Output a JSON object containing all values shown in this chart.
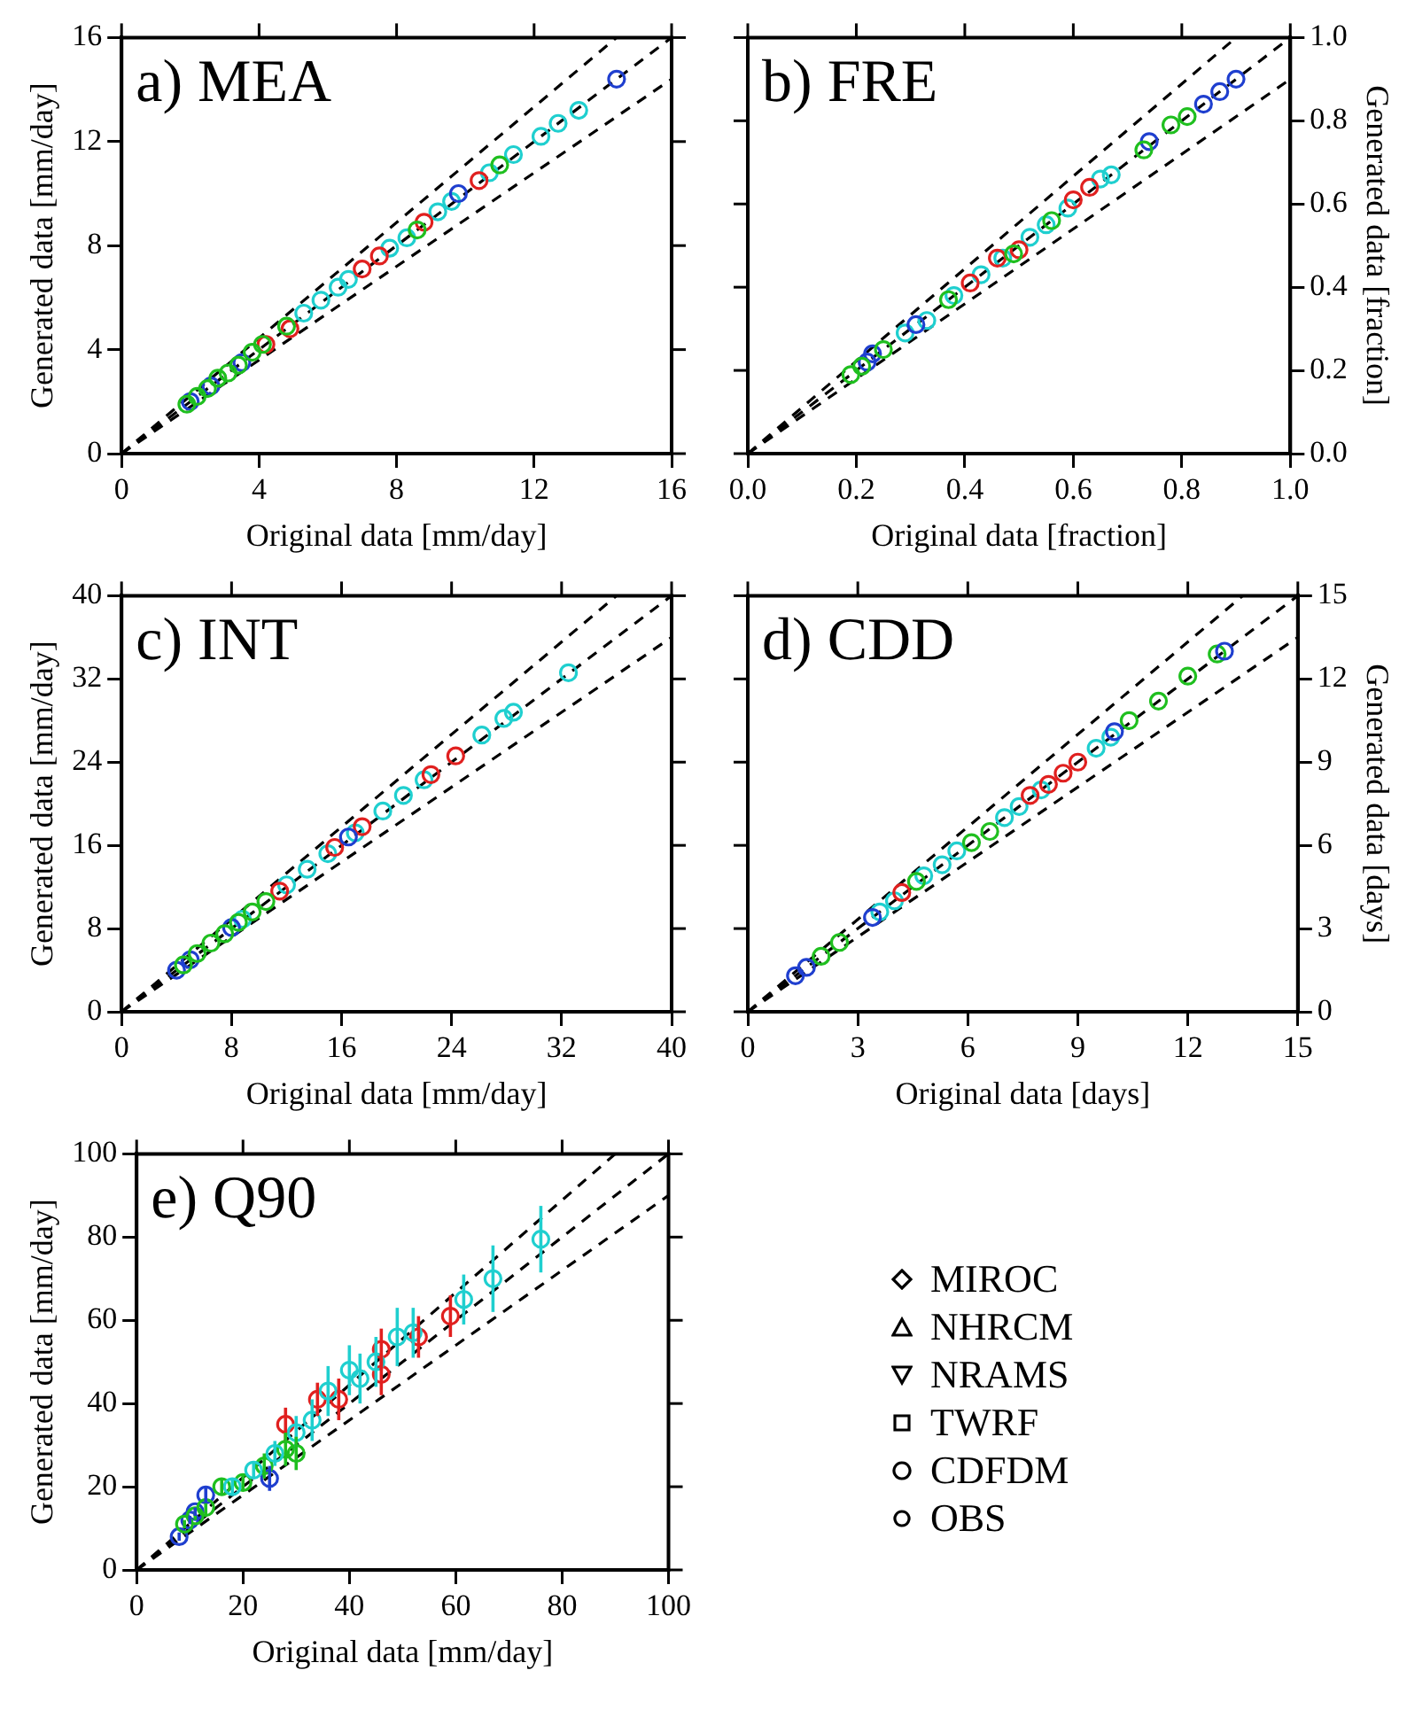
{
  "chart_data": [
    {
      "type": "scatter",
      "title": "a) MEA",
      "xlabel": "Original data [mm/day]",
      "ylabel": "Generated data [mm/day]",
      "xlim": [
        0,
        16
      ],
      "ylim": [
        0,
        16
      ],
      "xticks": [
        0,
        4,
        8,
        12,
        16
      ],
      "yticks": [
        0,
        4,
        8,
        12,
        16
      ],
      "marker": "circle",
      "series": [
        {
          "type": "line",
          "marker": "none",
          "color": "#000000",
          "line_style": "dashed",
          "x": [
            0,
            14.4
          ],
          "values": [
            0,
            16
          ]
        },
        {
          "type": "line",
          "marker": "none",
          "color": "#000000",
          "line_style": "dashed",
          "x": [
            0,
            16
          ],
          "values": [
            0,
            16
          ]
        },
        {
          "type": "line",
          "marker": "none",
          "color": "#000000",
          "line_style": "dashed",
          "x": [
            0,
            16
          ],
          "values": [
            0,
            14.4
          ]
        },
        {
          "color": "#1fbf1f",
          "x": [
            1.9,
            2.2,
            2.5,
            2.8,
            3.1,
            3.4,
            3.8,
            4.1,
            4.8,
            8.6,
            11.0
          ],
          "values": [
            1.9,
            2.2,
            2.5,
            2.9,
            3.1,
            3.4,
            3.9,
            4.2,
            4.9,
            8.6,
            11.1
          ]
        },
        {
          "color": "#1f3fcf",
          "x": [
            2.0,
            2.6,
            3.5,
            9.8,
            14.4
          ],
          "values": [
            2.0,
            2.6,
            3.5,
            10.0,
            14.4
          ]
        },
        {
          "color": "#e0201f",
          "x": [
            4.2,
            4.9,
            7.0,
            7.5,
            8.8,
            10.4
          ],
          "values": [
            4.2,
            4.8,
            7.1,
            7.6,
            8.9,
            10.5
          ]
        },
        {
          "color": "#1fcfcf",
          "x": [
            5.3,
            5.8,
            6.3,
            6.6,
            7.8,
            8.3,
            9.2,
            9.6,
            10.7,
            11.4,
            12.2,
            12.7,
            13.3
          ],
          "values": [
            5.4,
            5.9,
            6.4,
            6.7,
            7.9,
            8.3,
            9.3,
            9.7,
            10.8,
            11.5,
            12.2,
            12.7,
            13.2
          ]
        }
      ]
    },
    {
      "type": "scatter",
      "title": "b) FRE",
      "xlabel": "Original data [fraction]",
      "y2label": "Generated data [fraction]",
      "xlim": [
        0,
        1
      ],
      "y2lim": [
        0,
        1
      ],
      "xticks": [
        {
          "value": 0,
          "label": "0.0"
        },
        0.2,
        0.4,
        0.6,
        0.8,
        {
          "value": 1,
          "label": "1.0"
        }
      ],
      "y2ticks": [
        {
          "value": 0,
          "label": "0.0"
        },
        0.2,
        0.4,
        0.6,
        0.8,
        {
          "value": 1,
          "label": "1.0"
        }
      ],
      "marker": "circle",
      "series": [
        {
          "type": "line",
          "marker": "none",
          "axis": "y2",
          "color": "#000000",
          "line_style": "dashed",
          "x": [
            0,
            0.9
          ],
          "values": [
            0,
            1
          ]
        },
        {
          "type": "line",
          "marker": "none",
          "axis": "y2",
          "color": "#000000",
          "line_style": "dashed",
          "x": [
            0,
            1
          ],
          "values": [
            0,
            1
          ]
        },
        {
          "type": "line",
          "marker": "none",
          "axis": "y2",
          "color": "#000000",
          "line_style": "dashed",
          "x": [
            0,
            1
          ],
          "values": [
            0,
            0.9
          ]
        },
        {
          "axis": "y2",
          "color": "#1fbf1f",
          "x": [
            0.19,
            0.21,
            0.25,
            0.37,
            0.49,
            0.56,
            0.73,
            0.78,
            0.81
          ],
          "values": [
            0.19,
            0.21,
            0.25,
            0.37,
            0.48,
            0.56,
            0.73,
            0.79,
            0.81
          ]
        },
        {
          "axis": "y2",
          "color": "#1f3fcf",
          "x": [
            0.22,
            0.23,
            0.31,
            0.74,
            0.84,
            0.87,
            0.9
          ],
          "values": [
            0.22,
            0.24,
            0.31,
            0.75,
            0.84,
            0.87,
            0.9
          ]
        },
        {
          "axis": "y2",
          "color": "#e0201f",
          "x": [
            0.41,
            0.46,
            0.5,
            0.6,
            0.63
          ],
          "values": [
            0.41,
            0.47,
            0.49,
            0.61,
            0.64
          ]
        },
        {
          "axis": "y2",
          "color": "#1fcfcf",
          "x": [
            0.29,
            0.33,
            0.38,
            0.43,
            0.47,
            0.52,
            0.55,
            0.59,
            0.65,
            0.67
          ],
          "values": [
            0.29,
            0.32,
            0.38,
            0.43,
            0.47,
            0.52,
            0.55,
            0.59,
            0.66,
            0.67
          ]
        }
      ]
    },
    {
      "type": "scatter",
      "title": "c) INT",
      "xlabel": "Original data [mm/day]",
      "ylabel": "Generated data [mm/day]",
      "xlim": [
        0,
        40
      ],
      "ylim": [
        0,
        40
      ],
      "xticks": [
        0,
        8,
        16,
        24,
        32,
        40
      ],
      "yticks": [
        0,
        8,
        16,
        24,
        32,
        40
      ],
      "marker": "circle",
      "series": [
        {
          "type": "line",
          "marker": "none",
          "color": "#000000",
          "line_style": "dashed",
          "x": [
            0,
            36
          ],
          "values": [
            0,
            40
          ]
        },
        {
          "type": "line",
          "marker": "none",
          "color": "#000000",
          "line_style": "dashed",
          "x": [
            0,
            40
          ],
          "values": [
            0,
            40
          ]
        },
        {
          "type": "line",
          "marker": "none",
          "color": "#000000",
          "line_style": "dashed",
          "x": [
            0,
            40
          ],
          "values": [
            0,
            36
          ]
        },
        {
          "color": "#1fbf1f",
          "x": [
            4.5,
            5.5,
            6.5,
            7.5,
            8.5,
            9.5,
            10.5
          ],
          "values": [
            4.5,
            5.6,
            6.6,
            7.5,
            8.6,
            9.6,
            10.6
          ]
        },
        {
          "color": "#1f3fcf",
          "x": [
            4,
            5,
            8,
            16.5
          ],
          "values": [
            4,
            5,
            8.1,
            16.8
          ]
        },
        {
          "color": "#e0201f",
          "x": [
            11.5,
            15.5,
            17.5,
            22.5,
            24.3
          ],
          "values": [
            11.6,
            15.8,
            17.8,
            22.8,
            24.6
          ]
        },
        {
          "color": "#1fcfcf",
          "x": [
            8.8,
            12,
            13.5,
            15,
            17,
            19,
            20.5,
            22,
            26.2,
            27.8,
            28.5,
            32.5
          ],
          "values": [
            8.9,
            12.2,
            13.7,
            15.2,
            17.2,
            19.3,
            20.8,
            22.3,
            26.6,
            28.2,
            28.8,
            32.6
          ]
        }
      ]
    },
    {
      "type": "scatter",
      "title": "d) CDD",
      "xlabel": "Original data [days]",
      "y2label": "Generated data [days]",
      "xlim": [
        0,
        15
      ],
      "y2lim": [
        0,
        15
      ],
      "xticks": [
        0,
        3,
        6,
        9,
        12,
        15
      ],
      "y2ticks": [
        0,
        3,
        6,
        9,
        12,
        15
      ],
      "marker": "circle",
      "series": [
        {
          "type": "line",
          "marker": "none",
          "axis": "y2",
          "color": "#000000",
          "line_style": "dashed",
          "x": [
            0,
            13.5
          ],
          "values": [
            0,
            15
          ]
        },
        {
          "type": "line",
          "marker": "none",
          "axis": "y2",
          "color": "#000000",
          "line_style": "dashed",
          "x": [
            0,
            15
          ],
          "values": [
            0,
            15
          ]
        },
        {
          "type": "line",
          "marker": "none",
          "axis": "y2",
          "color": "#000000",
          "line_style": "dashed",
          "x": [
            0,
            15
          ],
          "values": [
            0,
            13.5
          ]
        },
        {
          "axis": "y2",
          "color": "#1f3fcf",
          "x": [
            1.3,
            1.6,
            3.4,
            10.0,
            13.0
          ],
          "values": [
            1.3,
            1.6,
            3.4,
            10.1,
            13.0
          ]
        },
        {
          "axis": "y2",
          "color": "#1fbf1f",
          "x": [
            2.0,
            2.5,
            4.6,
            6.1,
            6.6,
            10.4,
            11.2,
            12.0,
            12.8
          ],
          "values": [
            2.0,
            2.5,
            4.7,
            6.1,
            6.5,
            10.5,
            11.2,
            12.1,
            12.9
          ]
        },
        {
          "axis": "y2",
          "color": "#e0201f",
          "x": [
            4.2,
            7.7,
            8.2,
            8.6,
            9.0
          ],
          "values": [
            4.3,
            7.8,
            8.2,
            8.6,
            9.0
          ]
        },
        {
          "axis": "y2",
          "color": "#1fcfcf",
          "x": [
            3.6,
            4.0,
            4.8,
            5.3,
            5.7,
            7.0,
            7.4,
            8.0,
            9.5,
            9.9
          ],
          "values": [
            3.6,
            4.0,
            4.9,
            5.3,
            5.8,
            7.0,
            7.4,
            8.0,
            9.5,
            9.9
          ]
        }
      ]
    },
    {
      "type": "scatter",
      "title": "e) Q90",
      "xlabel": "Original data [mm/day]",
      "ylabel": "Generated data [mm/day]",
      "xlim": [
        0,
        100
      ],
      "ylim": [
        0,
        100
      ],
      "xticks": [
        0,
        20,
        40,
        60,
        80,
        100
      ],
      "yticks": [
        0,
        20,
        40,
        60,
        80,
        100
      ],
      "marker": "circle",
      "series": [
        {
          "type": "line",
          "marker": "none",
          "color": "#000000",
          "line_style": "dashed",
          "x": [
            0,
            90
          ],
          "values": [
            0,
            100
          ]
        },
        {
          "type": "line",
          "marker": "none",
          "color": "#000000",
          "line_style": "dashed",
          "x": [
            0,
            100
          ],
          "values": [
            0,
            100
          ]
        },
        {
          "type": "line",
          "marker": "none",
          "color": "#000000",
          "line_style": "dashed",
          "x": [
            0,
            100
          ],
          "values": [
            0,
            90
          ]
        },
        {
          "color": "#1fcfcf",
          "x": [
            76,
            67,
            61.5,
            52,
            49,
            45,
            42,
            40,
            36,
            33,
            30,
            26,
            22,
            18
          ],
          "values": [
            79.5,
            70,
            65,
            57,
            56,
            50,
            46,
            48,
            43,
            36,
            33,
            28,
            24,
            20
          ],
          "errors": [
            8,
            8,
            6,
            6,
            7,
            6,
            6,
            6,
            6,
            5,
            4,
            3,
            2,
            2
          ]
        },
        {
          "color": "#e0201f",
          "x": [
            59,
            53,
            46,
            46,
            38,
            34,
            28,
            null
          ],
          "values": [
            61,
            56,
            53,
            47,
            41,
            41,
            35,
            null
          ],
          "errors": [
            5,
            5,
            5,
            5,
            5,
            4,
            4,
            null
          ]
        },
        {
          "color": "#1fbf1f",
          "x": [
            30,
            28,
            24,
            20,
            16,
            13,
            11,
            9
          ],
          "values": [
            28,
            29,
            25,
            21,
            20,
            15,
            13,
            11
          ],
          "errors": [
            4,
            4,
            3,
            2,
            2,
            2,
            1,
            1
          ]
        },
        {
          "color": "#1f3fcf",
          "x": [
            25,
            null,
            13,
            11,
            10,
            8
          ],
          "values": [
            22,
            null,
            18,
            14,
            12,
            8
          ],
          "errors": [
            3,
            null,
            2,
            1,
            1,
            1
          ]
        }
      ]
    },
    {
      "type": "other",
      "annotations": [
        "MIROC",
        "NHRCM",
        "NRAMS",
        "TWRF",
        "CDFDM",
        "OBS"
      ]
    }
  ]
}
